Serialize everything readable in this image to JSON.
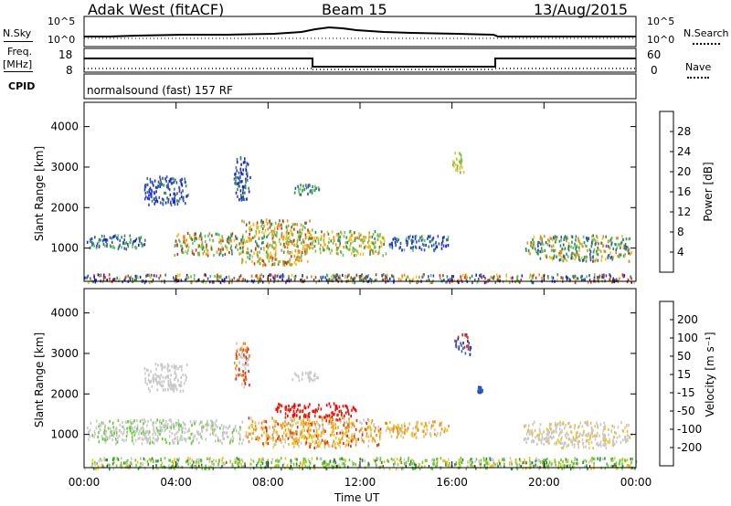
{
  "header": {
    "station": "Adak West (fitACF)",
    "beam": "Beam 15",
    "date": "13/Aug/2015"
  },
  "top_panels": {
    "nsky_label": "N.Sky",
    "nsearch_label": "N.Search",
    "nsky_ticks": [
      "10^5",
      "10^0"
    ],
    "nsearch_ticks": [
      "10^5",
      "10^0"
    ],
    "freq_label_1": "Freq.",
    "freq_label_2": "[MHz]",
    "freq_ticks": [
      "18",
      "8"
    ],
    "nave_label": "Nave",
    "nave_ticks": [
      "60",
      "0"
    ],
    "cpid_label": "CPID",
    "cpid_text": "normalsound (fast) 157 RF"
  },
  "chart_data": [
    {
      "type": "heatmap",
      "title": "",
      "ylabel": "Slant Range [km]",
      "ylim": [
        180,
        4600
      ],
      "yticks": [
        "1000",
        "2000",
        "3000",
        "4000"
      ],
      "xlim": [
        "00:00",
        "24:00"
      ],
      "colorbar": {
        "label": "Power [dB]",
        "ticks": [
          "4",
          "8",
          "12",
          "16",
          "20",
          "24",
          "28"
        ],
        "colors": [
          "#1a1af0",
          "#2f4fb5",
          "#2e8a5a",
          "#5cc45a",
          "#f0c020",
          "#f08a10",
          "#e02a10",
          "#ff0000"
        ]
      },
      "regions": [
        {
          "t": [
            6.8,
            9.9
          ],
          "r": [
            600,
            1750
          ],
          "level": "16-24 dB"
        },
        {
          "t": [
            3.9,
            6.9
          ],
          "r": [
            800,
            1400
          ],
          "level": "12-24 dB"
        },
        {
          "t": [
            9.9,
            13.1
          ],
          "r": [
            800,
            1450
          ],
          "level": "12-20 dB"
        },
        {
          "t": [
            19.1,
            23.8
          ],
          "r": [
            700,
            1350
          ],
          "level": "8-20 dB"
        },
        {
          "t": [
            0.1,
            2.7
          ],
          "r": [
            1000,
            1350
          ],
          "level": "4-12 dB"
        },
        {
          "t": [
            2.6,
            4.5
          ],
          "r": [
            2100,
            2800
          ],
          "level": "4-8 dB"
        }
      ]
    },
    {
      "type": "heatmap",
      "title": "",
      "ylabel": "Slant Range [km]",
      "xlabel": "Time UT",
      "ylim": [
        180,
        4600
      ],
      "yticks": [
        "1000",
        "2000",
        "3000",
        "4000"
      ],
      "xticks": [
        "00:00",
        "04:00",
        "08:00",
        "12:00",
        "16:00",
        "20:00",
        "00:00"
      ],
      "colorbar": {
        "label": "Velocity [m s⁻¹]",
        "ticks": [
          "200",
          "100",
          "50",
          "15",
          "-15",
          "-50",
          "-100",
          "-200"
        ],
        "colors": [
          "#1a2aaa",
          "#2b63c8",
          "#2e8a3a",
          "#66cc33",
          "#c8c8c8",
          "#f0c020",
          "#f08a10",
          "#e02a10",
          "#ff0000"
        ]
      },
      "regions": [
        {
          "t": [
            6.9,
            12.9
          ],
          "r": [
            700,
            1450
          ],
          "level": "-15 to -100 m/s"
        },
        {
          "t": [
            8.3,
            11.8
          ],
          "r": [
            1450,
            1800
          ],
          "level": "-100 to -200 m/s"
        },
        {
          "t": [
            0.1,
            6.9
          ],
          "r": [
            800,
            1400
          ],
          "level": "-15 to 15 m/s"
        },
        {
          "t": [
            19.1,
            23.8
          ],
          "r": [
            700,
            1350
          ],
          "level": "-15 to 15 m/s"
        },
        {
          "t": [
            0,
            24
          ],
          "r": [
            180,
            450
          ],
          "level": "15 to 50 m/s"
        }
      ]
    }
  ]
}
